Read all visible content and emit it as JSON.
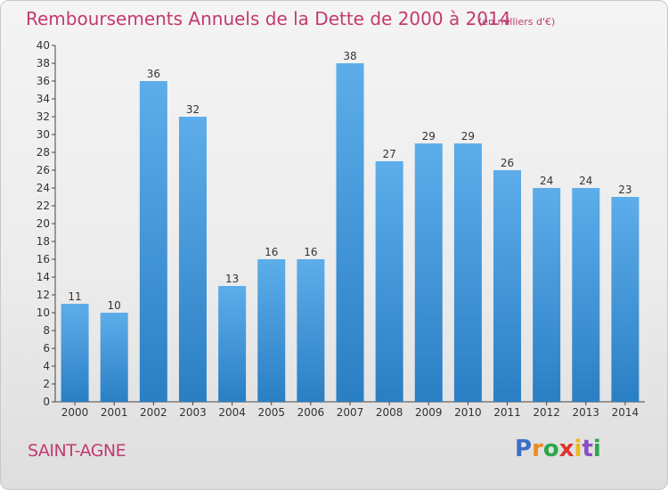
{
  "chart_data": {
    "type": "bar",
    "title": "Remboursements Annuels de la Dette de 2000 à 2014",
    "unit_label": "(en milliers d'€)",
    "categories": [
      "2000",
      "2001",
      "2002",
      "2003",
      "2004",
      "2005",
      "2006",
      "2007",
      "2008",
      "2009",
      "2010",
      "2011",
      "2012",
      "2013",
      "2014"
    ],
    "values": [
      11,
      10,
      36,
      32,
      13,
      16,
      16,
      38,
      27,
      29,
      29,
      26,
      24,
      24,
      23
    ],
    "ylim": [
      0,
      40
    ],
    "yticks": [
      0,
      2,
      4,
      6,
      8,
      10,
      12,
      14,
      16,
      18,
      20,
      22,
      24,
      26,
      28,
      30,
      32,
      34,
      36,
      38,
      40
    ],
    "xlabel": "",
    "ylabel": "",
    "grid": false,
    "bar_color_top": "#5dadea",
    "bar_color_bottom": "#2a7fc4"
  },
  "commune": "SAINT-AGNE",
  "logo": {
    "letters": [
      "P",
      "r",
      "o",
      "x",
      "i",
      "t",
      "i"
    ],
    "colors": [
      "#3b6fc4",
      "#f08a1c",
      "#2aa84a",
      "#e0342c",
      "#f0b81c",
      "#8a4fc4",
      "#2aa84a"
    ]
  },
  "colors": {
    "accent": "#c23a6e",
    "axis": "#333333"
  }
}
